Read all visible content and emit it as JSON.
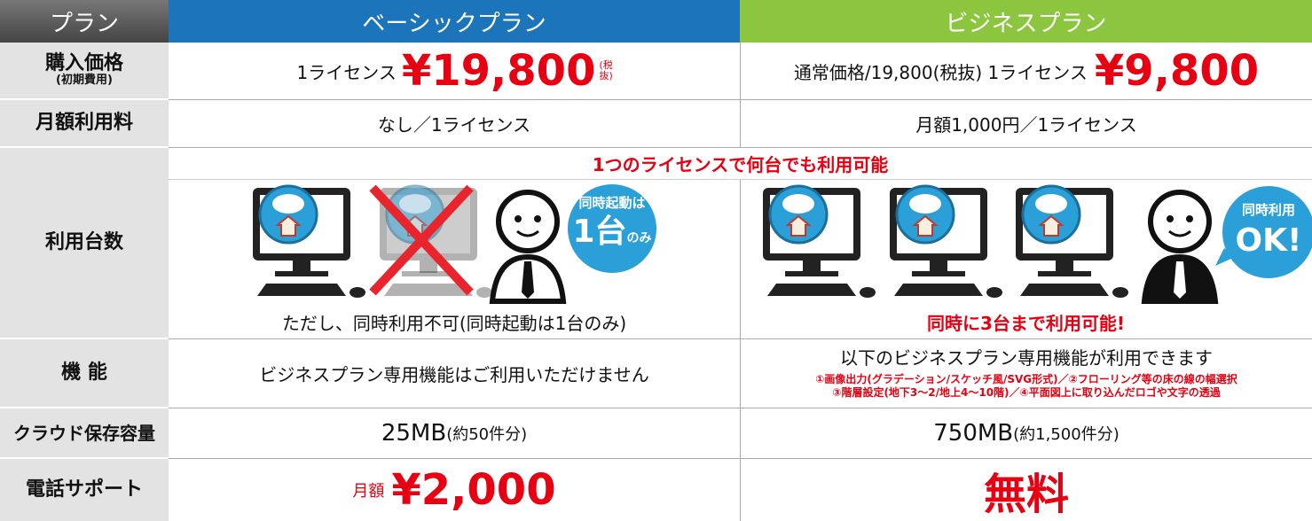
{
  "header": {
    "label": "プラン",
    "basic": "ベーシックプラン",
    "business": "ビジネスプラン"
  },
  "price": {
    "label": "購入価格",
    "sublabel": "(初期費用)",
    "basic": {
      "unit": "1ライセンス",
      "amount": "¥19,800",
      "tax": "(税抜)"
    },
    "business": {
      "note": "通常価格/19,800(税抜) 1ライセンス",
      "amount": "¥9,800"
    }
  },
  "monthly": {
    "label": "月額利用料",
    "basic": "なし／1ライセンス",
    "business": "月額1,000円／1ライセンス"
  },
  "devices": {
    "label": "利用台数",
    "banner": "1つのライセンスで何台でも利用可能",
    "basic": {
      "bubble_top": "同時起動は",
      "bubble_main": "1台",
      "bubble_suffix": "のみ",
      "caption": "ただし、同時利用不可(同時起動は1台のみ)"
    },
    "business": {
      "bubble_top": "同時利用",
      "bubble_main": "OK!",
      "caption": "同時に3台まで利用可能!"
    }
  },
  "features": {
    "label": "機 能",
    "basic": "ビジネスプラン専用機能はご利用いただけません",
    "business": {
      "title": "以下のビジネスプラン専用機能が利用できます",
      "items": [
        "①画像出力(グラデーション/スケッチ風/SVG形式)／②フローリング等の床の線の幅選択",
        "③階層設定(地下3～2/地上4～10階)／④平面図上に取り込んだロゴや文字の透過"
      ]
    }
  },
  "cloud": {
    "label": "クラウド保存容量",
    "basic": {
      "size": "25MB",
      "count": "(約50件分)"
    },
    "business": {
      "size": "750MB",
      "count": "(約1,500件分)"
    }
  },
  "phone": {
    "label": "電話サポート",
    "basic": {
      "prefix": "月額",
      "amount": "¥2,000"
    },
    "business": "無料"
  }
}
